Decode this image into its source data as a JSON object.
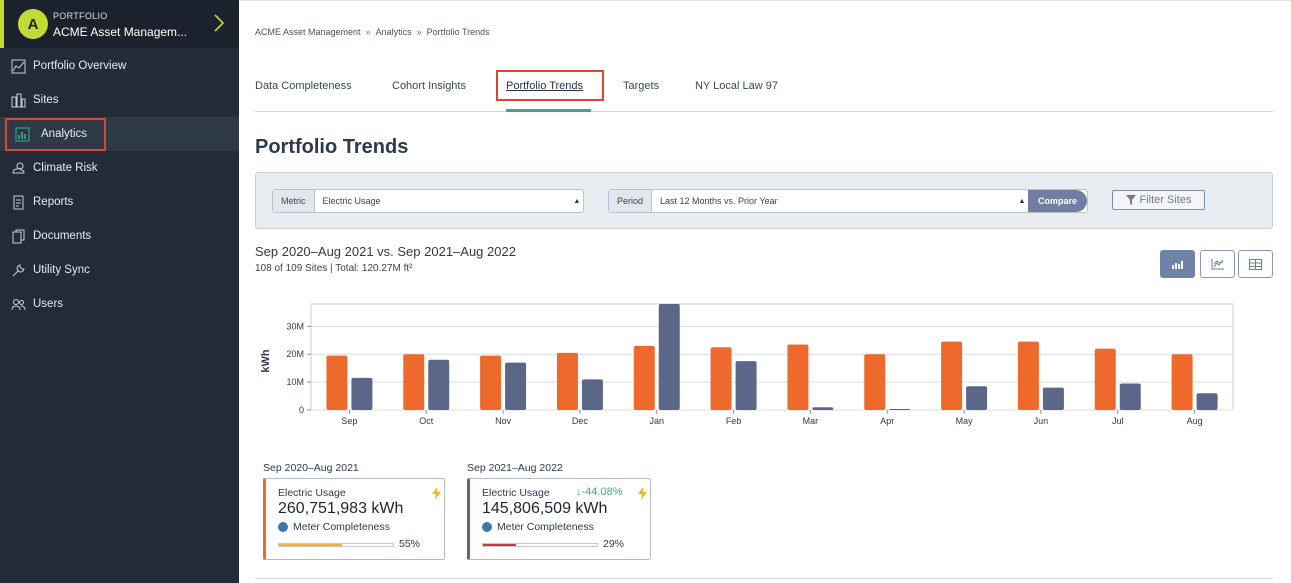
{
  "sidebar": {
    "portfolio_label": "PORTFOLIO",
    "avatar_letter": "A",
    "portfolio_name": "ACME Asset Managem...",
    "items": [
      {
        "label": "Portfolio Overview",
        "icon": "chart-area-icon"
      },
      {
        "label": "Sites",
        "icon": "buildings-icon"
      },
      {
        "label": "Analytics",
        "icon": "bar-chart-icon",
        "active": true
      },
      {
        "label": "Climate Risk",
        "icon": "cloud-sun-icon"
      },
      {
        "label": "Reports",
        "icon": "report-icon"
      },
      {
        "label": "Documents",
        "icon": "documents-icon"
      },
      {
        "label": "Utility Sync",
        "icon": "wrench-icon"
      },
      {
        "label": "Users",
        "icon": "users-icon"
      }
    ]
  },
  "breadcrumb": [
    "ACME Asset Management",
    "Analytics",
    "Portfolio Trends"
  ],
  "breadcrumb_sep": "»",
  "tabs": [
    "Data Completeness",
    "Cohort Insights",
    "Portfolio Trends",
    "Targets",
    "NY Local Law 97"
  ],
  "active_tab": "Portfolio Trends",
  "page_title": "Portfolio Trends",
  "filters": {
    "metric_label": "Metric",
    "metric_value": "Electric Usage",
    "period_label": "Period",
    "period_value": "Last 12 Months vs. Prior Year",
    "compare_label": "Compare",
    "filter_sites_label": "Filter Sites"
  },
  "range_title": "Sep 2020–Aug 2021 vs. Sep 2021–Aug 2022",
  "range_subtitle": "108 of 109 Sites | Total: 120.27M ft²",
  "colors": {
    "orange": "#ee6a2c",
    "navy": "#5a6789",
    "accent": "#3aaa8c",
    "highlight": "#e0452b",
    "lime": "#c5d934"
  },
  "chart_data": {
    "type": "bar",
    "categories": [
      "Sep",
      "Oct",
      "Nov",
      "Dec",
      "Jan",
      "Feb",
      "Mar",
      "Apr",
      "May",
      "Jun",
      "Jul",
      "Aug"
    ],
    "series": [
      {
        "color": "#ee6a2c",
        "values": [
          19.5,
          20,
          19.5,
          20.5,
          23,
          22.5,
          23.5,
          20,
          24.5,
          24.5,
          22,
          20
        ]
      },
      {
        "color": "#5a6789",
        "values": [
          11.5,
          18,
          17,
          11,
          38,
          17.5,
          1,
          0.3,
          8.5,
          8,
          9.5,
          6
        ]
      }
    ],
    "ylabel": "kWh",
    "yticks": [
      "0",
      "10M",
      "20M",
      "30M"
    ],
    "ytick_values": [
      0,
      10,
      20,
      30
    ],
    "ylim": [
      0,
      38
    ],
    "grid": true
  },
  "cards": [
    {
      "period": "Sep 2020–Aug 2021",
      "label": "Electric Usage",
      "value": "260,751,983 kWh",
      "meter_label": "Meter Completeness",
      "completeness": 0.55,
      "pct": "55%",
      "change": "",
      "bar_color": "#f2b431",
      "accent_color": "#ee6a2c"
    },
    {
      "period": "Sep 2021–Aug 2022",
      "label": "Electric Usage",
      "value": "145,806,509 kWh",
      "meter_label": "Meter Completeness",
      "completeness": 0.29,
      "pct": "29%",
      "change": "-44.08%",
      "bar_color": "#c83a3a",
      "accent_color": "#5a6789"
    }
  ]
}
